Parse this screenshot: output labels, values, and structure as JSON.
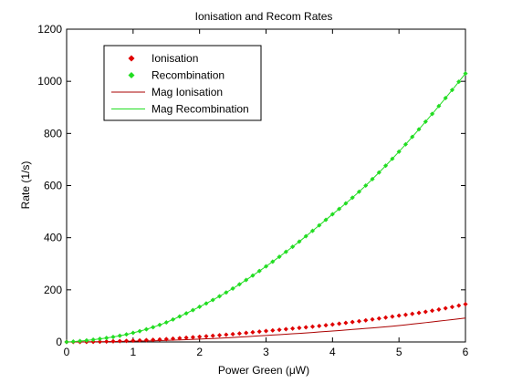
{
  "chart_data": {
    "type": "line",
    "title": "Ionisation and Recom Rates",
    "xlabel": "Power Green (μW)",
    "ylabel": "Rate (1/s)",
    "xlim": [
      0,
      6
    ],
    "ylim": [
      0,
      1200
    ],
    "xticks": [
      0,
      1,
      2,
      3,
      4,
      5,
      6
    ],
    "yticks": [
      0,
      200,
      400,
      600,
      800,
      1000,
      1200
    ],
    "grid": false,
    "legend_position": "top-left",
    "series": [
      {
        "name": "Ionisation",
        "style": "markers",
        "marker": "diamond",
        "color": "#e00000",
        "x": [
          0.0,
          0.5,
          1.0,
          1.5,
          2.0,
          2.5,
          3.0,
          3.5,
          4.0,
          4.5,
          5.0,
          5.5,
          6.0
        ],
        "y": [
          0,
          1,
          5,
          11,
          20,
          30,
          42,
          54,
          67,
          83,
          101,
          120,
          145
        ]
      },
      {
        "name": "Recombination",
        "style": "markers",
        "marker": "diamond",
        "color": "#22dd22",
        "x": [
          0.0,
          0.5,
          1.0,
          1.5,
          2.0,
          2.5,
          3.0,
          3.5,
          4.0,
          4.5,
          5.0,
          5.5,
          6.0
        ],
        "y": [
          0,
          12,
          35,
          75,
          135,
          205,
          290,
          385,
          490,
          600,
          730,
          875,
          1030
        ]
      },
      {
        "name": "Mag Ionisation",
        "style": "line",
        "color": "#aa0000",
        "x": [
          0.0,
          0.5,
          1.0,
          1.5,
          2.0,
          2.5,
          3.0,
          3.5,
          4.0,
          4.5,
          5.0,
          5.5,
          6.0
        ],
        "y": [
          0,
          1,
          3,
          6,
          11,
          17,
          25,
          33,
          42,
          52,
          63,
          77,
          92
        ]
      },
      {
        "name": "Mag Recombination",
        "style": "line",
        "color": "#22dd22",
        "x": [
          0.0,
          0.5,
          1.0,
          1.5,
          2.0,
          2.5,
          3.0,
          3.5,
          4.0,
          4.5,
          5.0,
          5.5,
          6.0
        ],
        "y": [
          0,
          12,
          35,
          75,
          135,
          205,
          290,
          385,
          490,
          600,
          730,
          875,
          1030
        ]
      }
    ]
  }
}
